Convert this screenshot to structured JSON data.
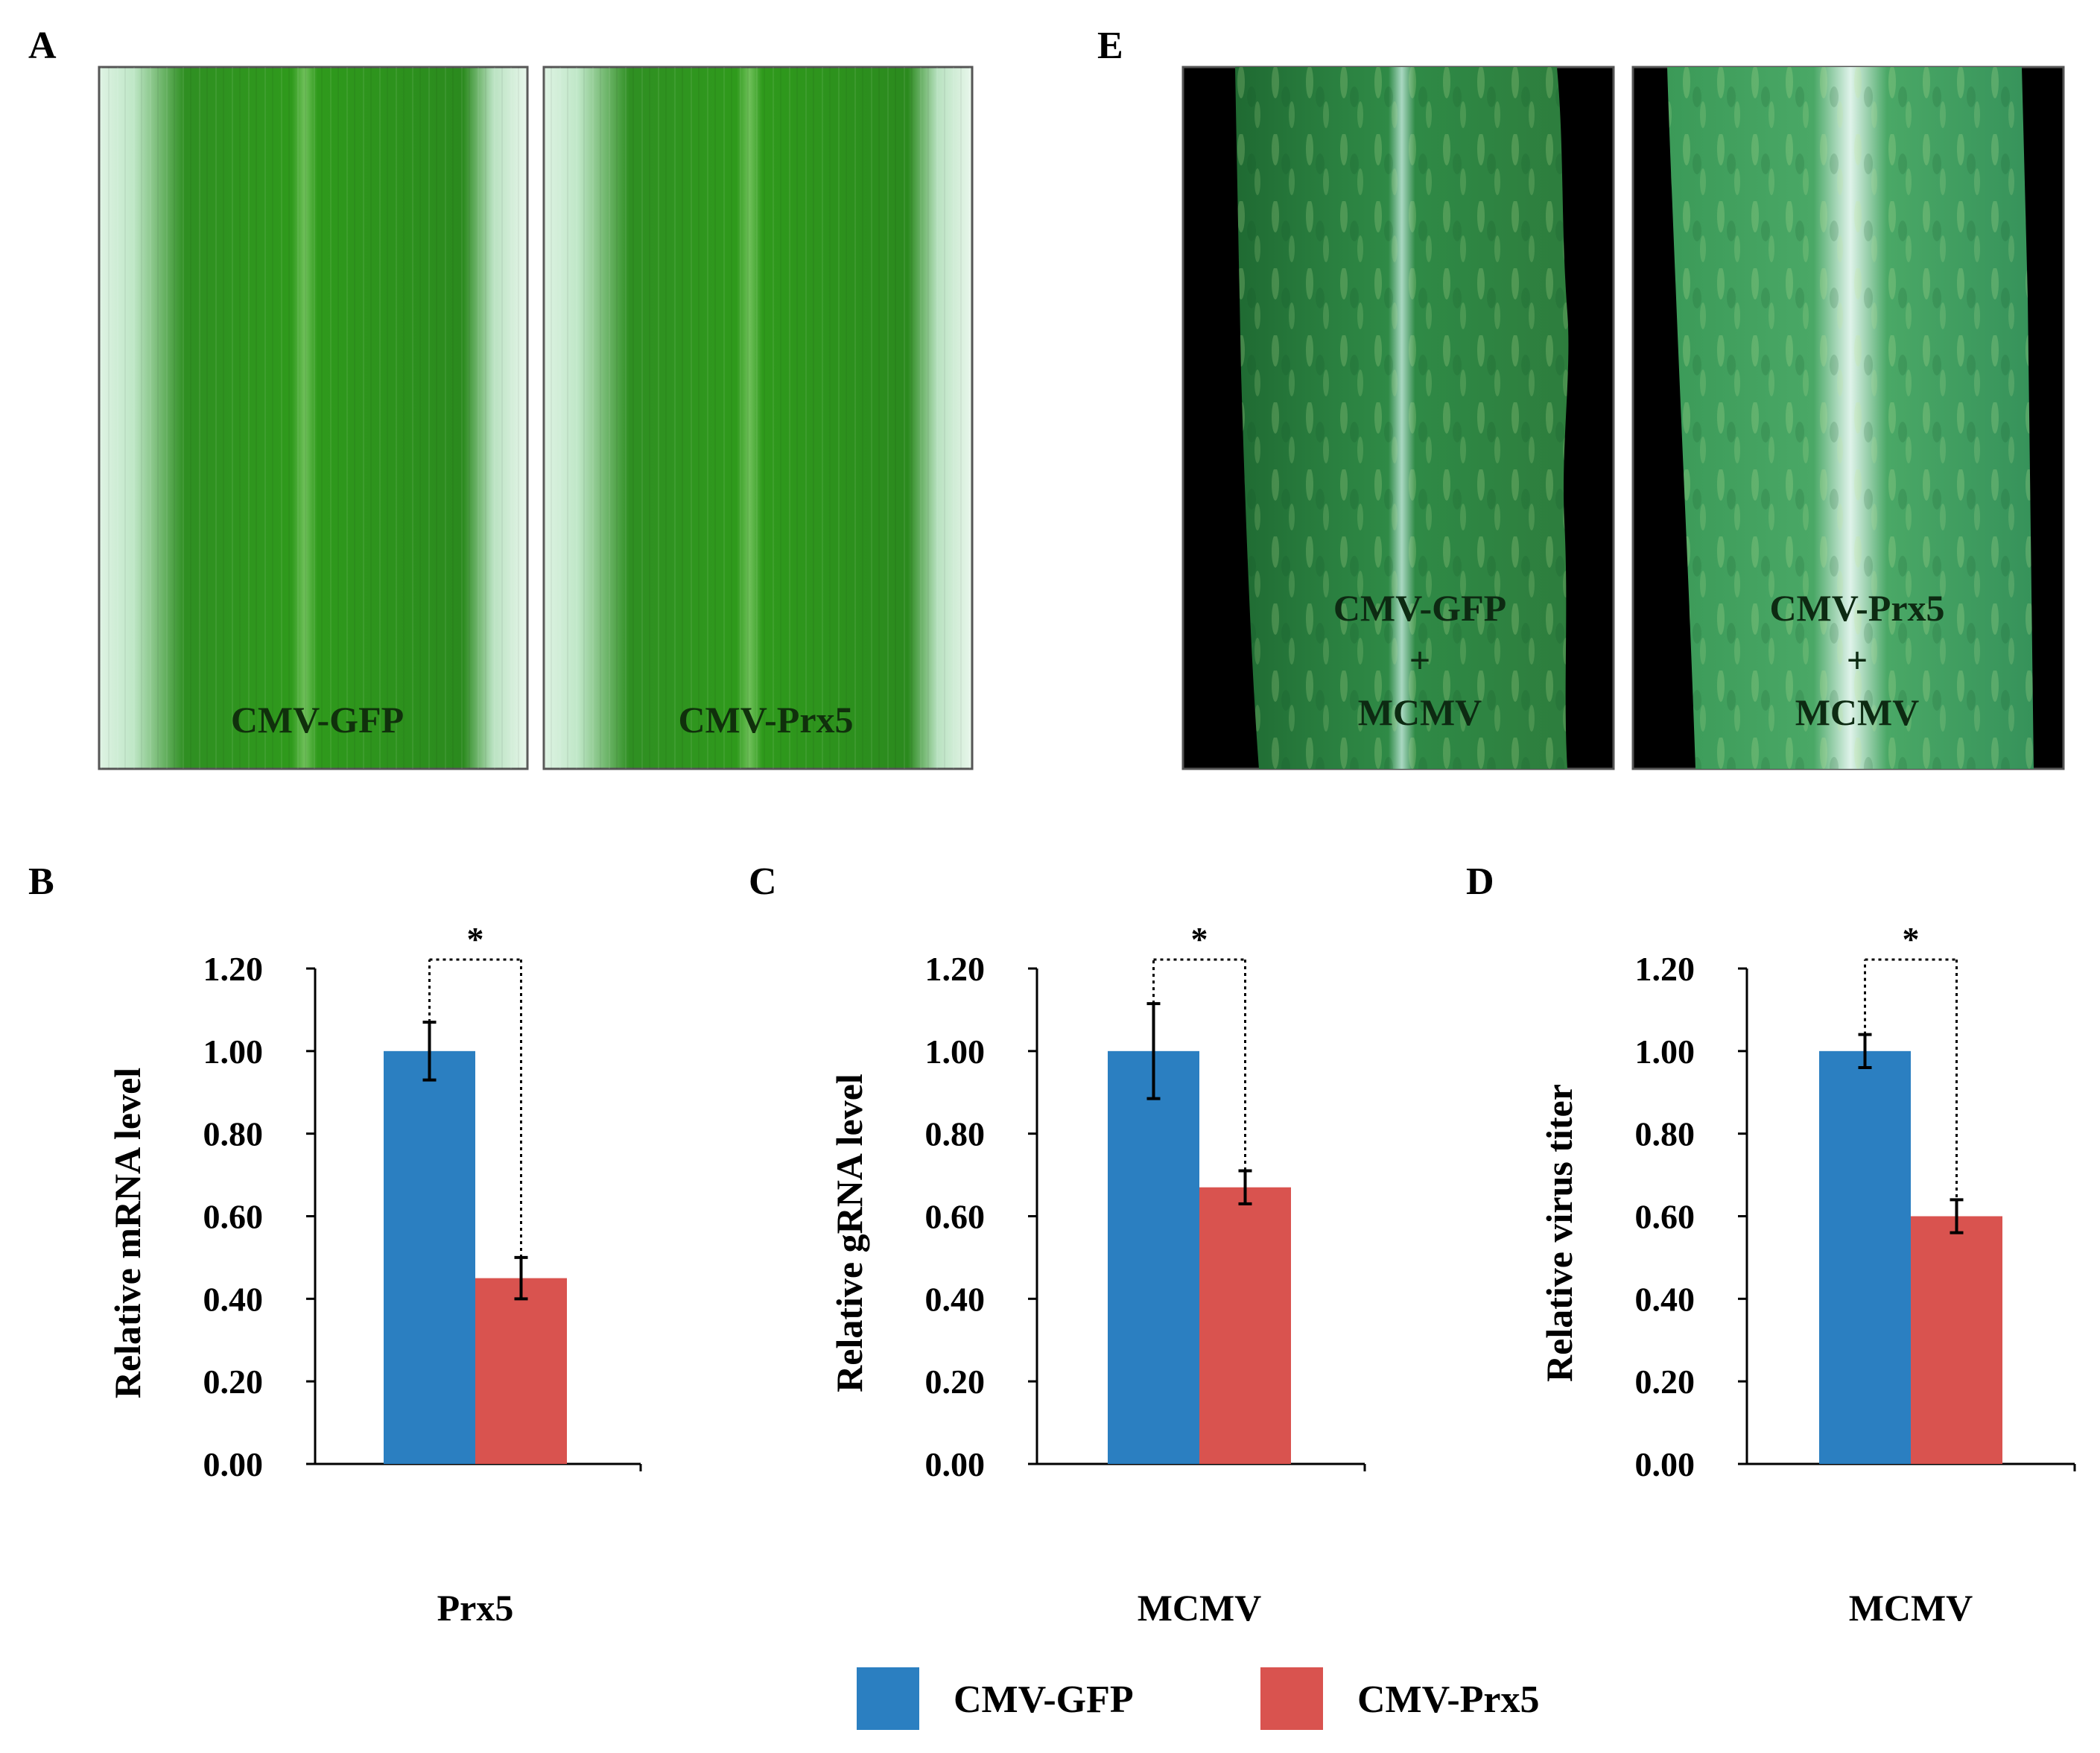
{
  "panels": {
    "A": "A",
    "B": "B",
    "C": "C",
    "D": "D",
    "E": "E"
  },
  "photos": {
    "leaf_a1": "CMV-GFP",
    "leaf_a2": "CMV-Prx5",
    "leaf_e1": [
      "CMV-GFP",
      "+",
      "MCMV"
    ],
    "leaf_e2": [
      "CMV-Prx5",
      "+",
      "MCMV"
    ]
  },
  "colors": {
    "gfp": "#2b7fc1",
    "prx5": "#d9534f",
    "leaf_green": "#2f9a1c",
    "leaf_dark": "#1e6e22",
    "mottled": "#3d9e58"
  },
  "chart_data": [
    {
      "type": "bar",
      "panel": "B",
      "categories": [
        "Prx5"
      ],
      "series": [
        {
          "name": "CMV-GFP",
          "values": [
            1.0
          ],
          "error": [
            0.07
          ]
        },
        {
          "name": "CMV-Prx5",
          "values": [
            0.45
          ],
          "error": [
            0.05
          ]
        }
      ],
      "ylabel": "Relative mRNA level",
      "xlabel": "Prx5",
      "ylim": [
        0,
        1.2
      ],
      "yticks": [
        "0.00",
        "0.20",
        "0.40",
        "0.60",
        "0.80",
        "1.00",
        "1.20"
      ],
      "significance": "*"
    },
    {
      "type": "bar",
      "panel": "C",
      "categories": [
        "MCMV"
      ],
      "series": [
        {
          "name": "CMV-GFP",
          "values": [
            1.0
          ],
          "error": [
            0.115
          ]
        },
        {
          "name": "CMV-Prx5",
          "values": [
            0.67
          ],
          "error": [
            0.04
          ]
        }
      ],
      "ylabel": "Relative gRNA level",
      "xlabel": "MCMV",
      "ylim": [
        0,
        1.2
      ],
      "yticks": [
        "0.00",
        "0.20",
        "0.40",
        "0.60",
        "0.80",
        "1.00",
        "1.20"
      ],
      "significance": "*"
    },
    {
      "type": "bar",
      "panel": "D",
      "categories": [
        "MCMV"
      ],
      "series": [
        {
          "name": "CMV-GFP",
          "values": [
            1.0
          ],
          "error": [
            0.04
          ]
        },
        {
          "name": "CMV-Prx5",
          "values": [
            0.6
          ],
          "error": [
            0.04
          ]
        }
      ],
      "ylabel": "Relative virus titer",
      "xlabel": "MCMV",
      "ylim": [
        0,
        1.2
      ],
      "yticks": [
        "0.00",
        "0.20",
        "0.40",
        "0.60",
        "0.80",
        "1.00",
        "1.20"
      ],
      "significance": "*"
    }
  ],
  "legend": {
    "items": [
      {
        "label": "CMV-GFP",
        "color": "#2b7fc1"
      },
      {
        "label": "CMV-Prx5",
        "color": "#d9534f"
      }
    ]
  }
}
